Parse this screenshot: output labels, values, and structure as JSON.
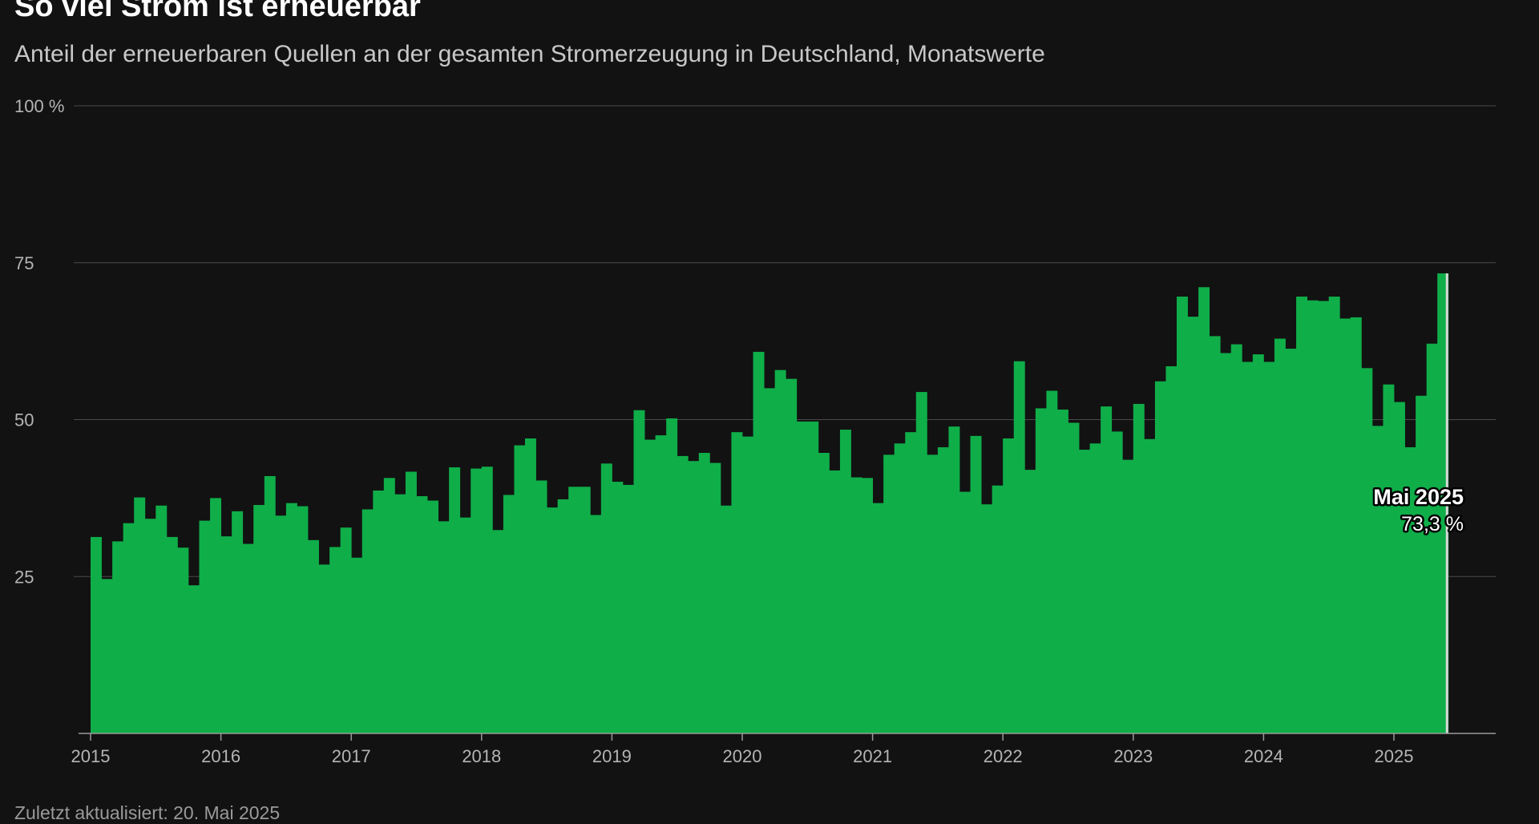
{
  "title": "So viel Strom ist erneuerbar",
  "subtitle": "Anteil der erneuerbaren Quellen an der gesamten Stromerzeugung in Deutschland, Monatswerte",
  "footer": "Zuletzt aktualisiert: 20. Mai 2025",
  "colors": {
    "bar": "#0fae49",
    "background": "#121212",
    "highlight": "#d8d8d8"
  },
  "chart_data": {
    "type": "area",
    "title": "So viel Strom ist erneuerbar",
    "subtitle": "Anteil der erneuerbaren Quellen an der gesamten Stromerzeugung in Deutschland, Monatswerte",
    "xlabel": "",
    "ylabel": "",
    "x_range": [
      "2015-01",
      "2025-05"
    ],
    "ylim": [
      0,
      100
    ],
    "y_ticks": [
      {
        "value": 25,
        "label": "25"
      },
      {
        "value": 50,
        "label": "50"
      },
      {
        "value": 75,
        "label": "75"
      },
      {
        "value": 100,
        "label": "100 %"
      }
    ],
    "x_ticks": [
      {
        "month": "2015-01",
        "label": "2015"
      },
      {
        "month": "2016-01",
        "label": "2016"
      },
      {
        "month": "2017-01",
        "label": "2017"
      },
      {
        "month": "2018-01",
        "label": "2018"
      },
      {
        "month": "2019-01",
        "label": "2019"
      },
      {
        "month": "2020-01",
        "label": "2020"
      },
      {
        "month": "2021-01",
        "label": "2021"
      },
      {
        "month": "2022-01",
        "label": "2022"
      },
      {
        "month": "2023-01",
        "label": "2023"
      },
      {
        "month": "2024-01",
        "label": "2024"
      },
      {
        "month": "2025-01",
        "label": "2025"
      }
    ],
    "grid": true,
    "months": [
      "2015-01",
      "2015-02",
      "2015-03",
      "2015-04",
      "2015-05",
      "2015-06",
      "2015-07",
      "2015-08",
      "2015-09",
      "2015-10",
      "2015-11",
      "2015-12",
      "2016-01",
      "2016-02",
      "2016-03",
      "2016-04",
      "2016-05",
      "2016-06",
      "2016-07",
      "2016-08",
      "2016-09",
      "2016-10",
      "2016-11",
      "2016-12",
      "2017-01",
      "2017-02",
      "2017-03",
      "2017-04",
      "2017-05",
      "2017-06",
      "2017-07",
      "2017-08",
      "2017-09",
      "2017-10",
      "2017-11",
      "2017-12",
      "2018-01",
      "2018-02",
      "2018-03",
      "2018-04",
      "2018-05",
      "2018-06",
      "2018-07",
      "2018-08",
      "2018-09",
      "2018-10",
      "2018-11",
      "2018-12",
      "2019-01",
      "2019-02",
      "2019-03",
      "2019-04",
      "2019-05",
      "2019-06",
      "2019-07",
      "2019-08",
      "2019-09",
      "2019-10",
      "2019-11",
      "2019-12",
      "2020-01",
      "2020-02",
      "2020-03",
      "2020-04",
      "2020-05",
      "2020-06",
      "2020-07",
      "2020-08",
      "2020-09",
      "2020-10",
      "2020-11",
      "2020-12",
      "2021-01",
      "2021-02",
      "2021-03",
      "2021-04",
      "2021-05",
      "2021-06",
      "2021-07",
      "2021-08",
      "2021-09",
      "2021-10",
      "2021-11",
      "2021-12",
      "2022-01",
      "2022-02",
      "2022-03",
      "2022-04",
      "2022-05",
      "2022-06",
      "2022-07",
      "2022-08",
      "2022-09",
      "2022-10",
      "2022-11",
      "2022-12",
      "2023-01",
      "2023-02",
      "2023-03",
      "2023-04",
      "2023-05",
      "2023-06",
      "2023-07",
      "2023-08",
      "2023-09",
      "2023-10",
      "2023-11",
      "2023-12",
      "2024-01",
      "2024-02",
      "2024-03",
      "2024-04",
      "2024-05",
      "2024-06",
      "2024-07",
      "2024-08",
      "2024-09",
      "2024-10",
      "2024-11",
      "2024-12",
      "2025-01",
      "2025-02",
      "2025-03",
      "2025-04",
      "2025-05"
    ],
    "values": [
      31.3,
      24.6,
      30.6,
      33.5,
      37.6,
      34.2,
      36.3,
      31.3,
      29.6,
      23.6,
      33.9,
      37.5,
      31.4,
      35.4,
      30.2,
      36.4,
      41.0,
      34.7,
      36.7,
      36.2,
      30.8,
      26.9,
      29.7,
      32.8,
      28.0,
      35.7,
      38.7,
      40.7,
      38.1,
      41.7,
      37.8,
      37.1,
      33.8,
      42.4,
      34.4,
      42.2,
      42.5,
      32.4,
      38.0,
      45.9,
      47.0,
      40.3,
      36.0,
      37.3,
      39.3,
      39.3,
      34.8,
      43.0,
      40.1,
      39.6,
      51.5,
      46.8,
      47.5,
      50.2,
      44.2,
      43.4,
      44.7,
      43.1,
      36.3,
      48.0,
      47.3,
      60.8,
      55.0,
      57.9,
      56.5,
      49.7,
      49.7,
      44.7,
      41.9,
      48.4,
      40.8,
      40.7,
      36.7,
      44.4,
      46.2,
      48.0,
      54.4,
      44.4,
      45.6,
      48.9,
      38.5,
      47.4,
      36.5,
      39.5,
      47.0,
      59.3,
      42.0,
      51.8,
      54.6,
      51.6,
      49.5,
      45.2,
      46.2,
      52.1,
      48.1,
      43.6,
      52.5,
      46.9,
      56.1,
      58.5,
      69.6,
      66.4,
      71.1,
      63.3,
      60.6,
      62.0,
      59.2,
      60.4,
      59.2,
      62.9,
      61.3,
      69.6,
      69.0,
      68.9,
      69.6,
      66.1,
      66.3,
      58.2,
      49.0,
      55.6,
      52.8,
      45.6,
      53.8,
      62.1,
      73.3
    ],
    "highlight": {
      "month": "2025-05",
      "label": "Mai 2025",
      "value_label": "73,3 %",
      "value": 73.3
    }
  }
}
